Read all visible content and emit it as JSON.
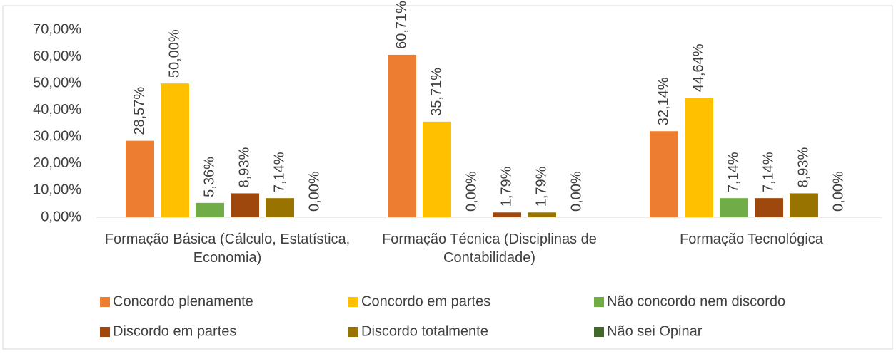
{
  "chart_data": {
    "type": "bar",
    "categories": [
      "Formação Básica (Cálculo, Estatística, Economia)",
      "Formação Técnica (Disciplinas de Contabilidade)",
      "Formação Tecnológica"
    ],
    "series": [
      {
        "name": "Concordo plenamente",
        "color": "#ed7d31",
        "values": [
          28.57,
          60.71,
          32.14
        ],
        "value_labels": [
          "28,57%",
          "60,71%",
          "32,14%"
        ]
      },
      {
        "name": "Concordo em partes",
        "color": "#ffc000",
        "values": [
          50.0,
          35.71,
          44.64
        ],
        "value_labels": [
          "50,00%",
          "35,71%",
          "44,64%"
        ]
      },
      {
        "name": "Não concordo nem discordo",
        "color": "#70ad47",
        "values": [
          5.36,
          0.0,
          7.14
        ],
        "value_labels": [
          "5,36%",
          "0,00%",
          "7,14%"
        ]
      },
      {
        "name": "Discordo em partes",
        "color": "#9e480e",
        "values": [
          8.93,
          1.79,
          7.14
        ],
        "value_labels": [
          "8,93%",
          "1,79%",
          "7,14%"
        ]
      },
      {
        "name": "Discordo totalmente",
        "color": "#997300",
        "values": [
          7.14,
          1.79,
          8.93
        ],
        "value_labels": [
          "7,14%",
          "1,79%",
          "8,93%"
        ]
      },
      {
        "name": "Não sei Opinar",
        "color": "#43682b",
        "values": [
          0.0,
          0.0,
          0.0
        ],
        "value_labels": [
          "0,00%",
          "0,00%",
          "0,00%"
        ]
      }
    ],
    "ylim": [
      0,
      70
    ],
    "yticks": [
      {
        "value": 0,
        "label": "0,00%"
      },
      {
        "value": 10,
        "label": "10,00%"
      },
      {
        "value": 20,
        "label": "20,00%"
      },
      {
        "value": 30,
        "label": "30,00%"
      },
      {
        "value": 40,
        "label": "40,00%"
      },
      {
        "value": 50,
        "label": "50,00%"
      },
      {
        "value": 60,
        "label": "60,00%"
      },
      {
        "value": 70,
        "label": "70,00%"
      }
    ],
    "grid": false
  }
}
